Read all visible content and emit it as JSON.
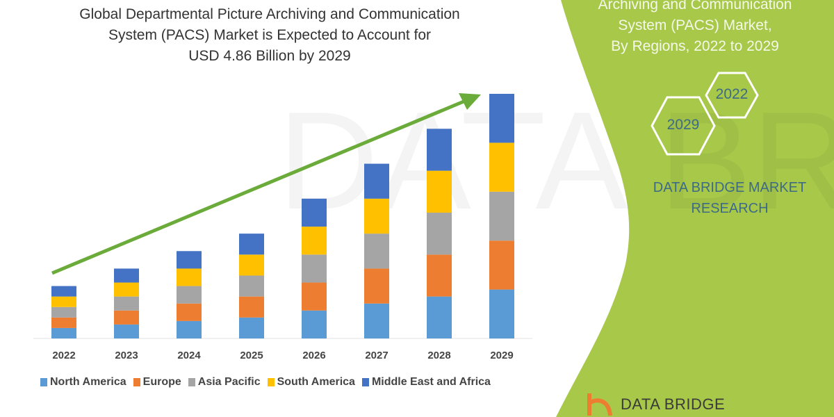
{
  "title": [
    "Global Departmental Picture Archiving and Communication",
    "System (PACS) Market is Expected to Account for",
    "USD 4.86 Billion by 2029"
  ],
  "side_panel": {
    "title": [
      "Archiving and Communication",
      "System (PACS) Market,",
      "By Regions, 2022 to 2029"
    ],
    "hex_2022": "2022",
    "hex_2029": "2029",
    "brand": [
      "DATA BRIDGE MARKET",
      "RESEARCH"
    ],
    "logo_text": "DATA BRIDGE",
    "panel_color": "#a8c84a"
  },
  "chart_data": {
    "type": "bar",
    "stacked": true,
    "categories": [
      "2022",
      "2023",
      "2024",
      "2025",
      "2026",
      "2027",
      "2028",
      "2029"
    ],
    "series": [
      {
        "name": "North America",
        "color": "#5b9bd5",
        "values": [
          1.5,
          2,
          2.5,
          3,
          4,
          5,
          6,
          7
        ]
      },
      {
        "name": "Europe",
        "color": "#ed7d31",
        "values": [
          1.5,
          2,
          2.5,
          3,
          4,
          5,
          6,
          7
        ]
      },
      {
        "name": "Asia Pacific",
        "color": "#a5a5a5",
        "values": [
          1.5,
          2,
          2.5,
          3,
          4,
          5,
          6,
          7
        ]
      },
      {
        "name": "South America",
        "color": "#ffc000",
        "values": [
          1.5,
          2,
          2.5,
          3,
          4,
          5,
          6,
          7
        ]
      },
      {
        "name": "Middle East and Africa",
        "color": "#4472c4",
        "values": [
          1.5,
          2,
          2.5,
          3,
          4,
          5,
          6,
          7
        ]
      }
    ],
    "ylim": [
      0,
      35
    ],
    "y_axis_shown": false,
    "grid": false,
    "legend_position": "bottom",
    "trend_arrow_color": "#6aab3a"
  }
}
